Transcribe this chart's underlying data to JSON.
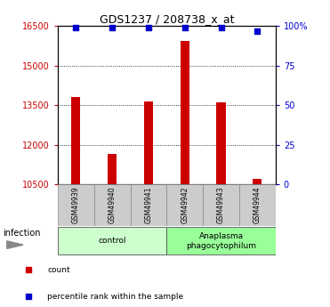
{
  "title": "GDS1237 / 208738_x_at",
  "samples": [
    "GSM49939",
    "GSM49940",
    "GSM49941",
    "GSM49942",
    "GSM49943",
    "GSM49944"
  ],
  "counts": [
    13800,
    11650,
    13650,
    15950,
    13600,
    10700
  ],
  "percentile_ranks": [
    99,
    99,
    99,
    99,
    99,
    97
  ],
  "ylim_left": [
    10500,
    16500
  ],
  "ylim_right": [
    0,
    100
  ],
  "yticks_left": [
    10500,
    12000,
    13500,
    15000,
    16500
  ],
  "yticks_right": [
    0,
    25,
    50,
    75,
    100
  ],
  "bar_color": "#cc0000",
  "dot_color": "#0000cc",
  "groups": [
    {
      "label": "control",
      "start": 0,
      "end": 3,
      "color": "#ccffcc"
    },
    {
      "label": "Anaplasma\nphagocytophilum",
      "start": 3,
      "end": 6,
      "color": "#99ff99"
    }
  ],
  "infection_label": "infection",
  "legend_items": [
    {
      "color": "#cc0000",
      "label": "count"
    },
    {
      "color": "#0000cc",
      "label": "percentile rank within the sample"
    }
  ],
  "bar_width": 0.25,
  "xlim": [
    -0.5,
    5.5
  ]
}
